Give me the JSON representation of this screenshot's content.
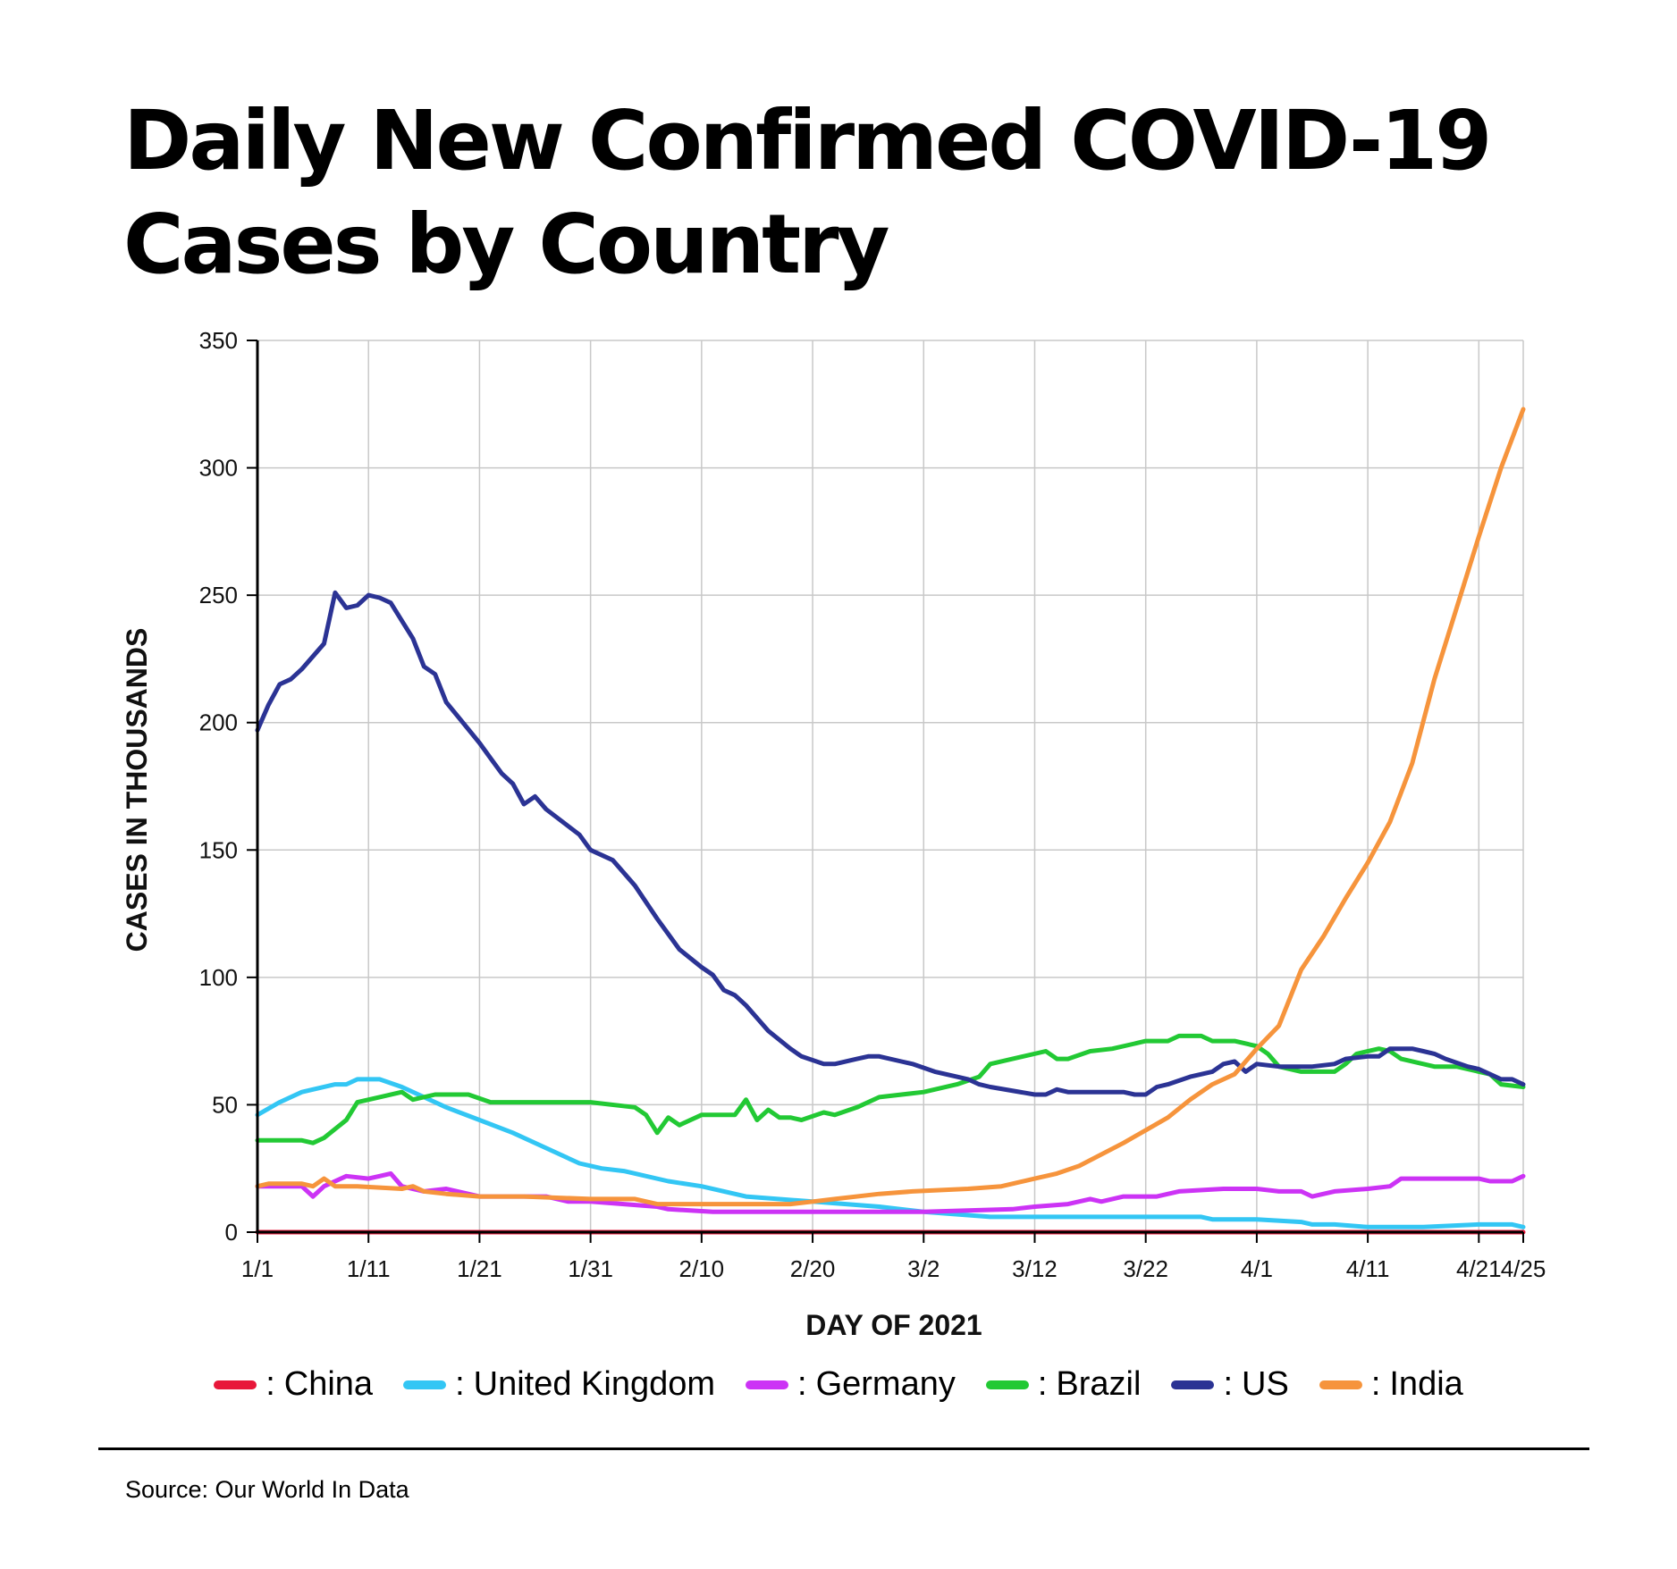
{
  "title": "Daily New Confirmed COVID-19 Cases by Country",
  "source": "Source: Our World In Data",
  "colors": {
    "grid": "#c8c8c8",
    "axis": "#000000"
  },
  "chart_data": {
    "type": "line",
    "title": "Daily New Confirmed COVID-19 Cases by Country",
    "xlabel": "DAY OF 2021",
    "ylabel": "CASES IN THOUSANDS",
    "ylim": [
      0,
      350
    ],
    "yticks": [
      0,
      50,
      100,
      150,
      200,
      250,
      300,
      350
    ],
    "xlim": [
      "1/1",
      "4/25"
    ],
    "xticks": [
      "1/1",
      "1/11",
      "1/21",
      "1/31",
      "2/10",
      "2/20",
      "3/2",
      "3/12",
      "3/22",
      "4/1",
      "4/11",
      "4/21",
      "4/25"
    ],
    "grid": true,
    "legend": "bottom",
    "series": [
      {
        "name": "China",
        "color": "#e8173a",
        "points": [
          [
            "1/1",
            0
          ],
          [
            "4/25",
            0
          ]
        ]
      },
      {
        "name": "United Kingdom",
        "color": "#33c6f4",
        "points": [
          [
            "1/1",
            46
          ],
          [
            "1/3",
            51
          ],
          [
            "1/5",
            55
          ],
          [
            "1/6",
            56
          ],
          [
            "1/8",
            58
          ],
          [
            "1/9",
            58
          ],
          [
            "1/10",
            60
          ],
          [
            "1/12",
            60
          ],
          [
            "1/14",
            57
          ],
          [
            "1/16",
            53
          ],
          [
            "1/18",
            49
          ],
          [
            "1/21",
            44
          ],
          [
            "1/24",
            39
          ],
          [
            "1/27",
            33
          ],
          [
            "1/30",
            27
          ],
          [
            "2/1",
            25
          ],
          [
            "2/3",
            24
          ],
          [
            "2/7",
            20
          ],
          [
            "2/10",
            18
          ],
          [
            "2/14",
            14
          ],
          [
            "2/20",
            12
          ],
          [
            "2/26",
            10
          ],
          [
            "3/2",
            8
          ],
          [
            "3/8",
            6
          ],
          [
            "3/12",
            6
          ],
          [
            "3/22",
            6
          ],
          [
            "3/27",
            6
          ],
          [
            "3/28",
            5
          ],
          [
            "4/1",
            5
          ],
          [
            "4/5",
            4
          ],
          [
            "4/6",
            3
          ],
          [
            "4/8",
            3
          ],
          [
            "4/11",
            2
          ],
          [
            "4/14",
            2
          ],
          [
            "4/16",
            2
          ],
          [
            "4/21",
            3
          ],
          [
            "4/24",
            3
          ],
          [
            "4/25",
            2
          ]
        ]
      },
      {
        "name": "Germany",
        "color": "#cc33f5",
        "points": [
          [
            "1/1",
            18
          ],
          [
            "1/2",
            18
          ],
          [
            "1/5",
            18
          ],
          [
            "1/6",
            14
          ],
          [
            "1/7",
            18
          ],
          [
            "1/9",
            22
          ],
          [
            "1/11",
            21
          ],
          [
            "1/12",
            22
          ],
          [
            "1/13",
            23
          ],
          [
            "1/14",
            18
          ],
          [
            "1/16",
            16
          ],
          [
            "1/18",
            17
          ],
          [
            "1/21",
            14
          ],
          [
            "1/23",
            14
          ],
          [
            "1/27",
            14
          ],
          [
            "1/29",
            12
          ],
          [
            "1/31",
            12
          ],
          [
            "2/6",
            10
          ],
          [
            "2/7",
            9
          ],
          [
            "2/11",
            8
          ],
          [
            "2/20",
            8
          ],
          [
            "2/26",
            8
          ],
          [
            "3/2",
            8
          ],
          [
            "3/10",
            9
          ],
          [
            "3/12",
            10
          ],
          [
            "3/15",
            11
          ],
          [
            "3/17",
            13
          ],
          [
            "3/18",
            12
          ],
          [
            "3/20",
            14
          ],
          [
            "3/23",
            14
          ],
          [
            "3/25",
            16
          ],
          [
            "3/29",
            17
          ],
          [
            "4/1",
            17
          ],
          [
            "4/3",
            16
          ],
          [
            "4/5",
            16
          ],
          [
            "4/6",
            14
          ],
          [
            "4/8",
            16
          ],
          [
            "4/11",
            17
          ],
          [
            "4/13",
            18
          ],
          [
            "4/14",
            21
          ],
          [
            "4/21",
            21
          ],
          [
            "4/22",
            20
          ],
          [
            "4/24",
            20
          ],
          [
            "4/25",
            22
          ]
        ]
      },
      {
        "name": "Brazil",
        "color": "#22c934",
        "points": [
          [
            "1/1",
            36
          ],
          [
            "1/5",
            36
          ],
          [
            "1/6",
            35
          ],
          [
            "1/7",
            37
          ],
          [
            "1/9",
            44
          ],
          [
            "1/10",
            51
          ],
          [
            "1/12",
            53
          ],
          [
            "1/14",
            55
          ],
          [
            "1/15",
            52
          ],
          [
            "1/17",
            54
          ],
          [
            "1/20",
            54
          ],
          [
            "1/22",
            51
          ],
          [
            "1/25",
            51
          ],
          [
            "1/31",
            51
          ],
          [
            "2/4",
            49
          ],
          [
            "2/5",
            46
          ],
          [
            "2/6",
            39
          ],
          [
            "2/7",
            45
          ],
          [
            "2/8",
            42
          ],
          [
            "2/10",
            46
          ],
          [
            "2/13",
            46
          ],
          [
            "2/14",
            52
          ],
          [
            "2/15",
            44
          ],
          [
            "2/16",
            48
          ],
          [
            "2/17",
            45
          ],
          [
            "2/18",
            45
          ],
          [
            "2/19",
            44
          ],
          [
            "2/21",
            47
          ],
          [
            "2/22",
            46
          ],
          [
            "2/24",
            49
          ],
          [
            "2/26",
            53
          ],
          [
            "3/2",
            55
          ],
          [
            "3/5",
            58
          ],
          [
            "3/7",
            61
          ],
          [
            "3/8",
            66
          ],
          [
            "3/10",
            68
          ],
          [
            "3/13",
            71
          ],
          [
            "3/14",
            68
          ],
          [
            "3/15",
            68
          ],
          [
            "3/17",
            71
          ],
          [
            "3/19",
            72
          ],
          [
            "3/21",
            74
          ],
          [
            "3/22",
            75
          ],
          [
            "3/24",
            75
          ],
          [
            "3/25",
            77
          ],
          [
            "3/27",
            77
          ],
          [
            "3/28",
            75
          ],
          [
            "3/30",
            75
          ],
          [
            "4/1",
            73
          ],
          [
            "4/2",
            70
          ],
          [
            "4/3",
            65
          ],
          [
            "4/5",
            63
          ],
          [
            "4/8",
            63
          ],
          [
            "4/9",
            66
          ],
          [
            "4/10",
            70
          ],
          [
            "4/12",
            72
          ],
          [
            "4/13",
            71
          ],
          [
            "4/14",
            68
          ],
          [
            "4/17",
            65
          ],
          [
            "4/19",
            65
          ],
          [
            "4/21",
            63
          ],
          [
            "4/22",
            62
          ],
          [
            "4/23",
            58
          ],
          [
            "4/25",
            57
          ]
        ]
      },
      {
        "name": "US",
        "color": "#2b3394",
        "points": [
          [
            "1/1",
            197
          ],
          [
            "1/2",
            207
          ],
          [
            "1/3",
            215
          ],
          [
            "1/4",
            217
          ],
          [
            "1/5",
            221
          ],
          [
            "1/7",
            231
          ],
          [
            "1/8",
            251
          ],
          [
            "1/9",
            245
          ],
          [
            "1/10",
            246
          ],
          [
            "1/11",
            250
          ],
          [
            "1/12",
            249
          ],
          [
            "1/13",
            247
          ],
          [
            "1/14",
            240
          ],
          [
            "1/15",
            233
          ],
          [
            "1/16",
            222
          ],
          [
            "1/17",
            219
          ],
          [
            "1/18",
            208
          ],
          [
            "1/21",
            192
          ],
          [
            "1/22",
            186
          ],
          [
            "1/23",
            180
          ],
          [
            "1/24",
            176
          ],
          [
            "1/25",
            168
          ],
          [
            "1/26",
            171
          ],
          [
            "1/27",
            166
          ],
          [
            "1/30",
            156
          ],
          [
            "1/31",
            150
          ],
          [
            "2/2",
            146
          ],
          [
            "2/4",
            136
          ],
          [
            "2/6",
            123
          ],
          [
            "2/7",
            117
          ],
          [
            "2/8",
            111
          ],
          [
            "2/10",
            104
          ],
          [
            "2/11",
            101
          ],
          [
            "2/12",
            95
          ],
          [
            "2/13",
            93
          ],
          [
            "2/14",
            89
          ],
          [
            "2/16",
            79
          ],
          [
            "2/18",
            72
          ],
          [
            "2/19",
            69
          ],
          [
            "2/21",
            66
          ],
          [
            "2/22",
            66
          ],
          [
            "2/24",
            68
          ],
          [
            "2/25",
            69
          ],
          [
            "2/26",
            69
          ],
          [
            "2/28",
            67
          ],
          [
            "3/1",
            66
          ],
          [
            "3/3",
            63
          ],
          [
            "3/5",
            61
          ],
          [
            "3/6",
            60
          ],
          [
            "3/7",
            58
          ],
          [
            "3/8",
            57
          ],
          [
            "3/12",
            54
          ],
          [
            "3/13",
            54
          ],
          [
            "3/14",
            56
          ],
          [
            "3/15",
            55
          ],
          [
            "3/20",
            55
          ],
          [
            "3/21",
            54
          ],
          [
            "3/22",
            54
          ],
          [
            "3/23",
            57
          ],
          [
            "3/24",
            58
          ],
          [
            "3/26",
            61
          ],
          [
            "3/28",
            63
          ],
          [
            "3/29",
            66
          ],
          [
            "3/30",
            67
          ],
          [
            "3/31",
            63
          ],
          [
            "4/1",
            66
          ],
          [
            "4/3",
            65
          ],
          [
            "4/5",
            65
          ],
          [
            "4/6",
            65
          ],
          [
            "4/8",
            66
          ],
          [
            "4/9",
            68
          ],
          [
            "4/11",
            69
          ],
          [
            "4/12",
            69
          ],
          [
            "4/13",
            72
          ],
          [
            "4/15",
            72
          ],
          [
            "4/16",
            71
          ],
          [
            "4/17",
            70
          ],
          [
            "4/18",
            68
          ],
          [
            "4/20",
            65
          ],
          [
            "4/21",
            64
          ],
          [
            "4/22",
            62
          ],
          [
            "4/23",
            60
          ],
          [
            "4/24",
            60
          ],
          [
            "4/25",
            58
          ]
        ]
      },
      {
        "name": "India",
        "color": "#f6943c",
        "points": [
          [
            "1/1",
            18
          ],
          [
            "1/2",
            19
          ],
          [
            "1/5",
            19
          ],
          [
            "1/6",
            18
          ],
          [
            "1/7",
            21
          ],
          [
            "1/8",
            18
          ],
          [
            "1/10",
            18
          ],
          [
            "1/14",
            17
          ],
          [
            "1/15",
            18
          ],
          [
            "1/16",
            16
          ],
          [
            "1/18",
            15
          ],
          [
            "1/21",
            14
          ],
          [
            "1/25",
            14
          ],
          [
            "1/31",
            13
          ],
          [
            "2/4",
            13
          ],
          [
            "2/6",
            11
          ],
          [
            "2/10",
            11
          ],
          [
            "2/18",
            11
          ],
          [
            "2/20",
            12
          ],
          [
            "2/22",
            13
          ],
          [
            "2/26",
            15
          ],
          [
            "3/1",
            16
          ],
          [
            "3/6",
            17
          ],
          [
            "3/9",
            18
          ],
          [
            "3/12",
            21
          ],
          [
            "3/14",
            23
          ],
          [
            "3/16",
            26
          ],
          [
            "3/20",
            35
          ],
          [
            "3/22",
            40
          ],
          [
            "3/24",
            45
          ],
          [
            "3/26",
            52
          ],
          [
            "3/28",
            58
          ],
          [
            "3/30",
            62
          ],
          [
            "4/1",
            72
          ],
          [
            "4/3",
            81
          ],
          [
            "4/5",
            103
          ],
          [
            "4/7",
            116
          ],
          [
            "4/9",
            131
          ],
          [
            "4/11",
            145
          ],
          [
            "4/13",
            161
          ],
          [
            "4/15",
            184
          ],
          [
            "4/17",
            217
          ],
          [
            "4/19",
            245
          ],
          [
            "4/21",
            273
          ],
          [
            "4/23",
            300
          ],
          [
            "4/25",
            323
          ]
        ]
      }
    ]
  }
}
